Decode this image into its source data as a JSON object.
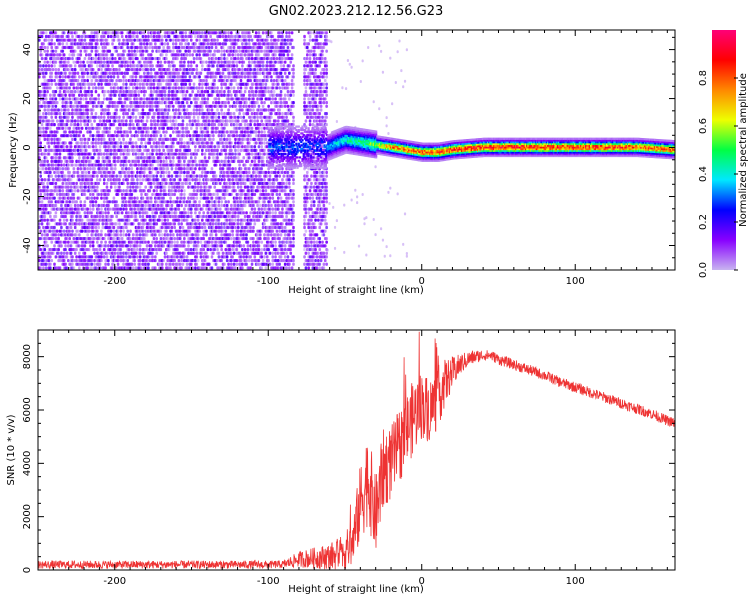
{
  "title": "GN02.2023.212.12.56.G23",
  "colors": {
    "snr_line": "#ee3333",
    "axes": "#000000",
    "colorbar_stops": [
      "#c8b4f0",
      "#8800ff",
      "#0000ff",
      "#00e8ff",
      "#00ff44",
      "#eeff00",
      "#ff8800",
      "#ff0000",
      "#ff0077"
    ]
  },
  "chart_data": [
    {
      "type": "heatmap",
      "xlabel": "Height of straight line (km)",
      "ylabel": "Frequency (Hz)",
      "xlim": [
        -250,
        165
      ],
      "ylim": [
        -50,
        48
      ],
      "xticks": [
        -200,
        -100,
        0,
        100
      ],
      "xtick_labels": [
        "-200",
        "-100",
        "0",
        "100"
      ],
      "yticks": [
        -40,
        -20,
        0,
        20,
        40
      ],
      "ytick_labels": [
        "-40",
        "-20",
        "0",
        "20",
        "40"
      ],
      "noise_region_x": [
        -250,
        -62
      ],
      "noise_gap_x": [
        -84,
        -78
      ],
      "signal_track": {
        "x": [
          -62,
          -50,
          -40,
          -30,
          -20,
          -10,
          0,
          10,
          20,
          40,
          60,
          80,
          100,
          120,
          140,
          165
        ],
        "frequency": [
          0,
          3,
          2,
          1,
          0,
          -1,
          -2,
          -2,
          -1,
          0,
          0,
          0,
          0,
          0,
          0,
          -1
        ],
        "peak_amplitude": [
          0.35,
          0.45,
          0.5,
          0.6,
          0.8,
          0.85,
          0.85,
          0.9,
          0.92,
          0.93,
          0.93,
          0.92,
          0.9,
          0.9,
          0.88,
          0.85
        ]
      },
      "colorbar": {
        "label": "Normalized spectral amplitude",
        "range": [
          0,
          1
        ],
        "ticks": [
          0.0,
          0.2,
          0.4,
          0.6,
          0.8
        ],
        "tick_labels": [
          "0.0",
          "0.2",
          "0.4",
          "0.6",
          "0.8"
        ]
      },
      "grid": false
    },
    {
      "type": "line",
      "xlabel": "Height of straight line (km)",
      "ylabel": "SNR (10 * v/v)",
      "xlim": [
        -250,
        165
      ],
      "ylim": [
        0,
        9000
      ],
      "xticks": [
        -200,
        -100,
        0,
        100
      ],
      "xtick_labels": [
        "-200",
        "-100",
        "0",
        "100"
      ],
      "yticks": [
        0,
        2000,
        4000,
        6000,
        8000
      ],
      "ytick_labels": [
        "0",
        "2000",
        "4000",
        "6000",
        "8000"
      ],
      "series": [
        {
          "x": [
            -250,
            -200,
            -150,
            -100,
            -90,
            -80,
            -70,
            -60,
            -50,
            -45,
            -40,
            -35,
            -30,
            -25,
            -20,
            -15,
            -10,
            -5,
            0,
            5,
            10,
            15,
            20,
            25,
            30,
            35,
            40,
            45,
            50,
            60,
            70,
            80,
            90,
            100,
            110,
            120,
            130,
            140,
            150,
            160,
            165
          ],
          "y": [
            200,
            200,
            200,
            200,
            210,
            400,
            450,
            500,
            700,
            1000,
            2500,
            3500,
            2000,
            3800,
            4000,
            4600,
            5200,
            5800,
            6200,
            6000,
            6400,
            7000,
            7400,
            7700,
            7900,
            8000,
            8050,
            8050,
            7900,
            7700,
            7500,
            7300,
            7050,
            6850,
            6650,
            6450,
            6250,
            6050,
            5850,
            5600,
            5500
          ],
          "noise_amplitude": [
            150,
            150,
            150,
            150,
            150,
            300,
            400,
            500,
            700,
            900,
            1500,
            1800,
            1500,
            1500,
            1400,
            1400,
            1400,
            1400,
            1300,
            1200,
            1200,
            900,
            600,
            400,
            300,
            250,
            200,
            200,
            200,
            200,
            200,
            200,
            200,
            200,
            200,
            200,
            200,
            200,
            200,
            200,
            200
          ]
        }
      ],
      "grid": false
    }
  ]
}
